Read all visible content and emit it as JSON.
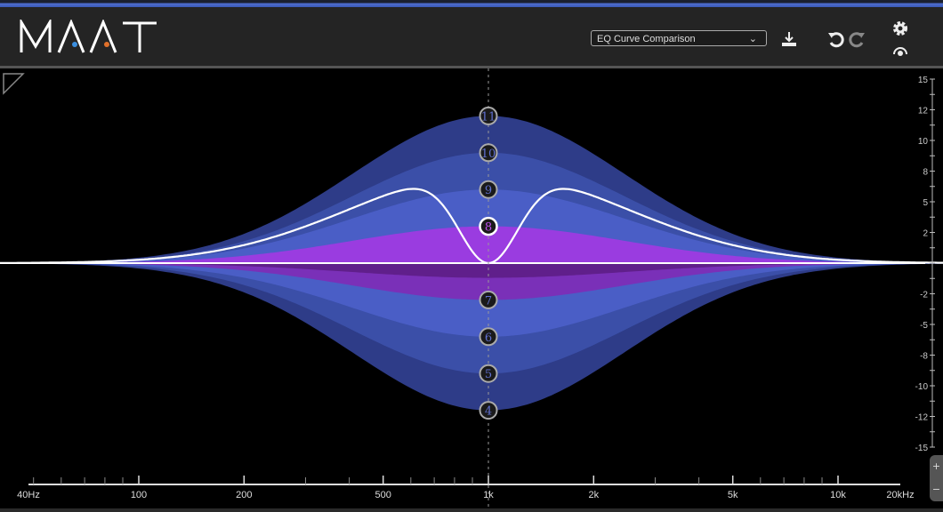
{
  "app": {
    "logo_text": "MAAT"
  },
  "header": {
    "preset_value": "EQ Curve Comparison",
    "icons": [
      "download-icon",
      "undo-icon",
      "redo-icon",
      "gear-icon",
      "meter-icon"
    ]
  },
  "zoom": {
    "plus": "+",
    "minus": "−"
  },
  "colors": {
    "accent_blue": "#3b8fe0",
    "accent_orange": "#e0702a",
    "band_outer": "#2e3c88",
    "band_mid": "#3b4fa8",
    "band_inner": "#4a5ec6",
    "band_purple": "#9a3ce0",
    "band_purple_dark": "#7a30b8",
    "curve": "#ffffff"
  },
  "chart_data": {
    "type": "area",
    "xscale": "log",
    "xlim": [
      40,
      20000
    ],
    "ylim": [
      -15,
      15
    ],
    "x_ticks": [
      "40Hz",
      "100",
      "200",
      "500",
      "1k",
      "2k",
      "5k",
      "10k",
      "20kHz"
    ],
    "x_tick_values": [
      40,
      100,
      200,
      500,
      1000,
      2000,
      5000,
      10000,
      20000
    ],
    "y_ticks": [
      "15",
      "12",
      "10",
      "8",
      "5",
      "2",
      "-2",
      "-5",
      "-8",
      "-10",
      "-12",
      "-15"
    ],
    "y_tick_values": [
      15,
      12.5,
      10,
      7.5,
      5,
      2.5,
      -2.5,
      -5,
      -7.5,
      -10,
      -12.5,
      -15
    ],
    "nodes": [
      {
        "label": "11",
        "freq": 1000,
        "gain": 12
      },
      {
        "label": "10",
        "freq": 1000,
        "gain": 9
      },
      {
        "label": "9",
        "freq": 1000,
        "gain": 6
      },
      {
        "label": "8",
        "freq": 1000,
        "gain": 3,
        "selected": true
      },
      {
        "label": "7",
        "freq": 1000,
        "gain": -3
      },
      {
        "label": "6",
        "freq": 1000,
        "gain": -6
      },
      {
        "label": "5",
        "freq": 1000,
        "gain": -9
      },
      {
        "label": "4",
        "freq": 1000,
        "gain": -12
      }
    ],
    "comparison_curve": {
      "description_points": [
        [
          40,
          0
        ],
        [
          200,
          1.5
        ],
        [
          580,
          6
        ],
        [
          1000,
          0
        ],
        [
          1700,
          6
        ],
        [
          5000,
          1.5
        ],
        [
          20000,
          0
        ]
      ]
    }
  }
}
